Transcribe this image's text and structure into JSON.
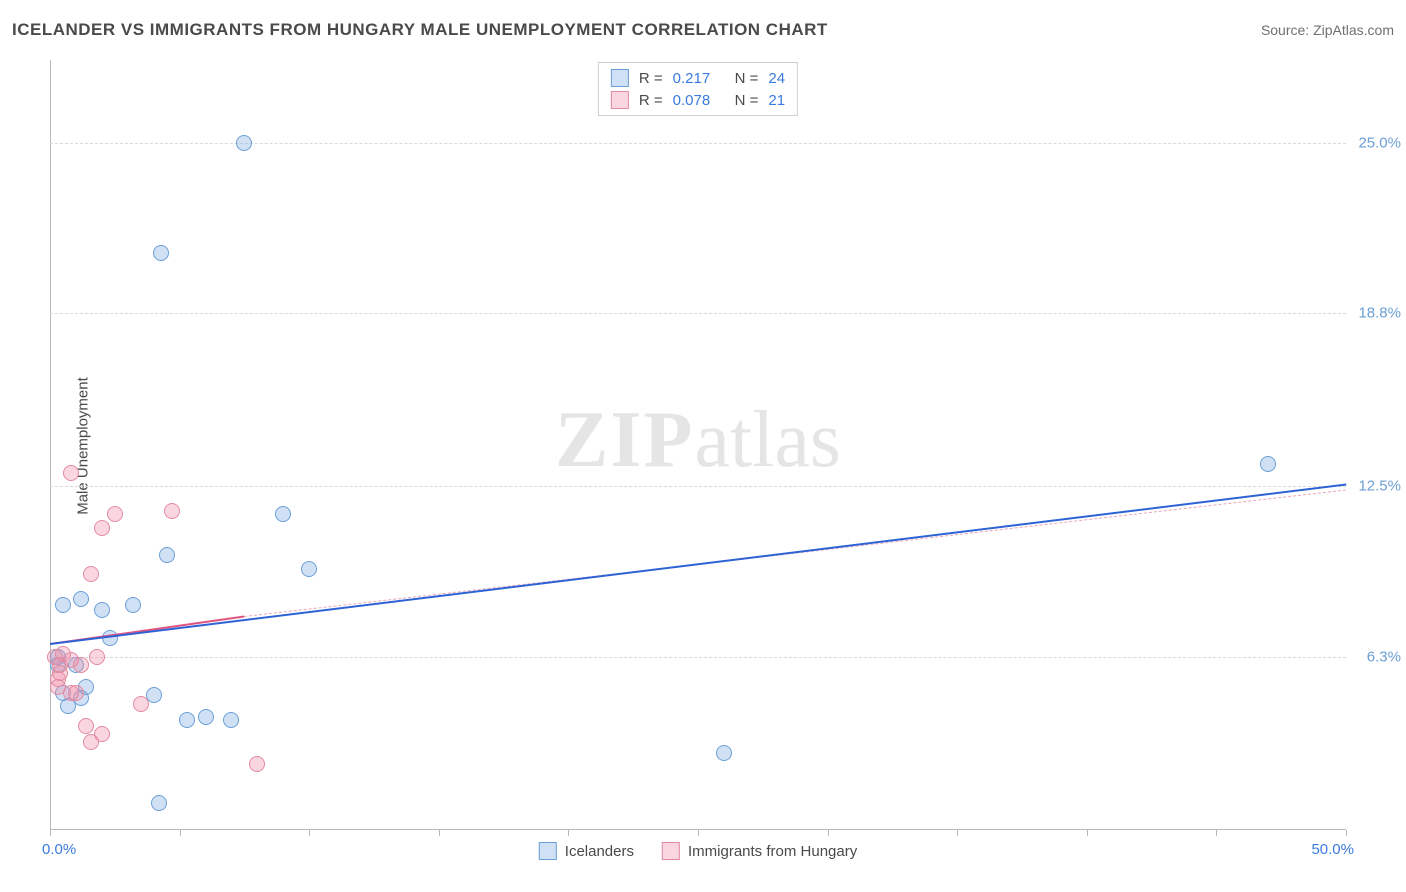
{
  "title": "ICELANDER VS IMMIGRANTS FROM HUNGARY MALE UNEMPLOYMENT CORRELATION CHART",
  "source_label": "Source: ",
  "source_name": "ZipAtlas.com",
  "ylabel": "Male Unemployment",
  "watermark_bold": "ZIP",
  "watermark_light": "atlas",
  "chart": {
    "type": "scatter",
    "xlim": [
      0,
      50
    ],
    "ylim": [
      0,
      28
    ],
    "x_axis_min_label": "0.0%",
    "x_axis_max_label": "50.0%",
    "x_tick_positions": [
      0,
      5,
      10,
      15,
      20,
      25,
      30,
      35,
      40,
      45,
      50
    ],
    "y_gridlines": [
      {
        "value": 6.3,
        "label": "6.3%"
      },
      {
        "value": 12.5,
        "label": "12.5%"
      },
      {
        "value": 18.8,
        "label": "18.8%"
      },
      {
        "value": 25.0,
        "label": "25.0%"
      }
    ],
    "background_color": "#ffffff",
    "grid_color": "#d9d9d9",
    "axis_color": "#b8b8b8",
    "marker_radius": 8,
    "marker_border_width": 1.2,
    "series": [
      {
        "id": "icelanders",
        "label": "Icelanders",
        "fill": "rgba(120,170,225,0.35)",
        "stroke": "#6b9fd6",
        "r_label": "R =",
        "r_value": "0.217",
        "n_label": "N =",
        "n_value": "24",
        "legend_value_color": "#3a7be0",
        "trend": {
          "x1": 0,
          "y1": 6.8,
          "x2": 50,
          "y2": 12.6,
          "color": "#2d63d4",
          "width": 2.5,
          "dash": "solid"
        },
        "points": [
          [
            7.5,
            25.0
          ],
          [
            4.3,
            21.0
          ],
          [
            0.5,
            8.2
          ],
          [
            0.5,
            5.0
          ],
          [
            0.7,
            4.5
          ],
          [
            1.4,
            5.2
          ],
          [
            1.2,
            4.8
          ],
          [
            2.0,
            8.0
          ],
          [
            2.3,
            7.0
          ],
          [
            4.0,
            4.9
          ],
          [
            4.5,
            10.0
          ],
          [
            4.2,
            1.0
          ],
          [
            5.3,
            4.0
          ],
          [
            6.0,
            4.1
          ],
          [
            7.0,
            4.0
          ],
          [
            9.0,
            11.5
          ],
          [
            10.0,
            9.5
          ],
          [
            26.0,
            2.8
          ],
          [
            47.0,
            13.3
          ],
          [
            1.2,
            8.4
          ],
          [
            0.3,
            6.3
          ],
          [
            0.3,
            6.0
          ],
          [
            1.0,
            6.0
          ],
          [
            3.2,
            8.2
          ]
        ]
      },
      {
        "id": "hungary",
        "label": "Immigrants from Hungary",
        "fill": "rgba(240,140,165,0.35)",
        "stroke": "#e28aa0",
        "r_label": "R =",
        "r_value": "0.078",
        "n_label": "N =",
        "n_value": "21",
        "legend_value_color": "#3a7be0",
        "trend_solid": {
          "x1": 0,
          "y1": 6.8,
          "x2": 7.5,
          "y2": 7.8,
          "color": "#e05580",
          "width": 2.2,
          "dash": "solid"
        },
        "trend_dash": {
          "x1": 7.5,
          "y1": 7.8,
          "x2": 50,
          "y2": 12.4,
          "color": "#e8a7b8",
          "width": 1.2,
          "dash": "dashed"
        },
        "points": [
          [
            0.8,
            13.0
          ],
          [
            2.0,
            11.0
          ],
          [
            2.5,
            11.5
          ],
          [
            4.7,
            11.6
          ],
          [
            1.6,
            9.3
          ],
          [
            0.4,
            6.0
          ],
          [
            0.5,
            6.4
          ],
          [
            0.8,
            6.2
          ],
          [
            1.2,
            6.0
          ],
          [
            1.8,
            6.3
          ],
          [
            1.0,
            5.0
          ],
          [
            0.3,
            5.5
          ],
          [
            0.3,
            5.2
          ],
          [
            0.8,
            5.0
          ],
          [
            1.4,
            3.8
          ],
          [
            2.0,
            3.5
          ],
          [
            3.5,
            4.6
          ],
          [
            8.0,
            2.4
          ],
          [
            0.2,
            6.3
          ],
          [
            0.4,
            5.7
          ],
          [
            1.6,
            3.2
          ]
        ]
      }
    ]
  },
  "xaxis_label_colors": {
    "min": "#3a7be0",
    "max": "#3a7be0"
  },
  "ytick_label_color": "#6b9fd6"
}
